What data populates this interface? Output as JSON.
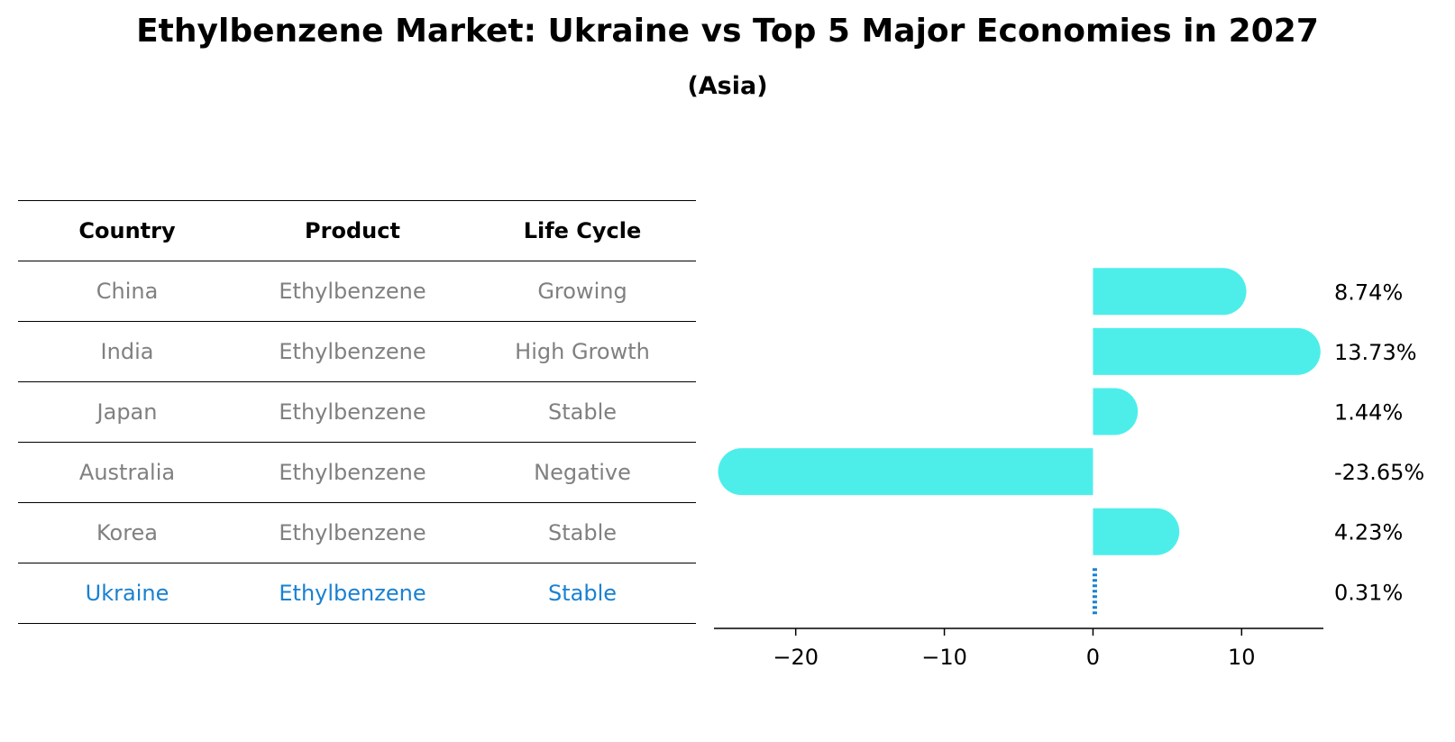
{
  "title": "Ethylbenzene Market: Ukraine vs Top 5 Major Economies in 2027",
  "subtitle": "(Asia)",
  "table": {
    "headers": [
      "Country",
      "Product",
      "Life Cycle"
    ],
    "rows": [
      {
        "country": "China",
        "product": "Ethylbenzene",
        "life_cycle": "Growing"
      },
      {
        "country": "India",
        "product": "Ethylbenzene",
        "life_cycle": "High Growth"
      },
      {
        "country": "Japan",
        "product": "Ethylbenzene",
        "life_cycle": "Stable"
      },
      {
        "country": "Australia",
        "product": "Ethylbenzene",
        "life_cycle": "Negative"
      },
      {
        "country": "Korea",
        "product": "Ethylbenzene",
        "life_cycle": "Stable"
      },
      {
        "country": "Ukraine",
        "product": "Ethylbenzene",
        "life_cycle": "Stable"
      }
    ],
    "highlight_color": "#1a81d1",
    "text_color": "#808080"
  },
  "chart_data": {
    "type": "bar",
    "orientation": "horizontal",
    "categories": [
      "China",
      "India",
      "Japan",
      "Australia",
      "Korea",
      "Ukraine"
    ],
    "values": [
      8.74,
      13.73,
      1.44,
      -23.65,
      4.23,
      0.31
    ],
    "value_labels": [
      "8.74%",
      "13.73%",
      "1.44%",
      "-23.65%",
      "4.23%",
      "0.31%"
    ],
    "xlim": [
      -25.5,
      15.5
    ],
    "xticks": [
      -20,
      -10,
      0,
      10
    ],
    "xtick_labels": [
      "−20",
      "−10",
      "0",
      "10"
    ],
    "bar_color": "#4deeea",
    "highlight_color": "#1a81d1",
    "highlight_category": "Ukraine",
    "grid": false,
    "xlabel": "",
    "ylabel": ""
  }
}
